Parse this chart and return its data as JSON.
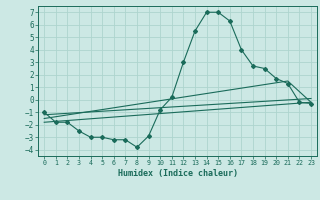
{
  "xlabel": "Humidex (Indice chaleur)",
  "bg_color": "#cce8e4",
  "line_color": "#1a6b5a",
  "grid_color": "#aed4ce",
  "xlim": [
    -0.5,
    23.5
  ],
  "ylim": [
    -4.5,
    7.5
  ],
  "xticks": [
    0,
    1,
    2,
    3,
    4,
    5,
    6,
    7,
    8,
    9,
    10,
    11,
    12,
    13,
    14,
    15,
    16,
    17,
    18,
    19,
    20,
    21,
    22,
    23
  ],
  "yticks": [
    -4,
    -3,
    -2,
    -1,
    0,
    1,
    2,
    3,
    4,
    5,
    6,
    7
  ],
  "curve1_x": [
    0,
    1,
    2,
    3,
    4,
    5,
    6,
    7,
    8,
    9,
    10,
    11,
    12,
    13,
    14,
    15,
    16,
    17,
    18,
    19,
    20,
    21,
    22,
    23
  ],
  "curve1_y": [
    -1,
    -1.8,
    -1.8,
    -2.5,
    -3,
    -3,
    -3.2,
    -3.2,
    -3.8,
    -2.9,
    -0.8,
    0.2,
    3.0,
    5.5,
    7.0,
    7.0,
    6.3,
    4.0,
    2.7,
    2.5,
    1.7,
    1.3,
    -0.2,
    -0.3
  ],
  "curve2_x": [
    0,
    23
  ],
  "curve2_y": [
    -1.8,
    -0.2
  ],
  "curve3_x": [
    0,
    23
  ],
  "curve3_y": [
    -1.2,
    0.1
  ],
  "curve4_x": [
    0,
    21,
    23
  ],
  "curve4_y": [
    -1.5,
    1.5,
    -0.2
  ]
}
